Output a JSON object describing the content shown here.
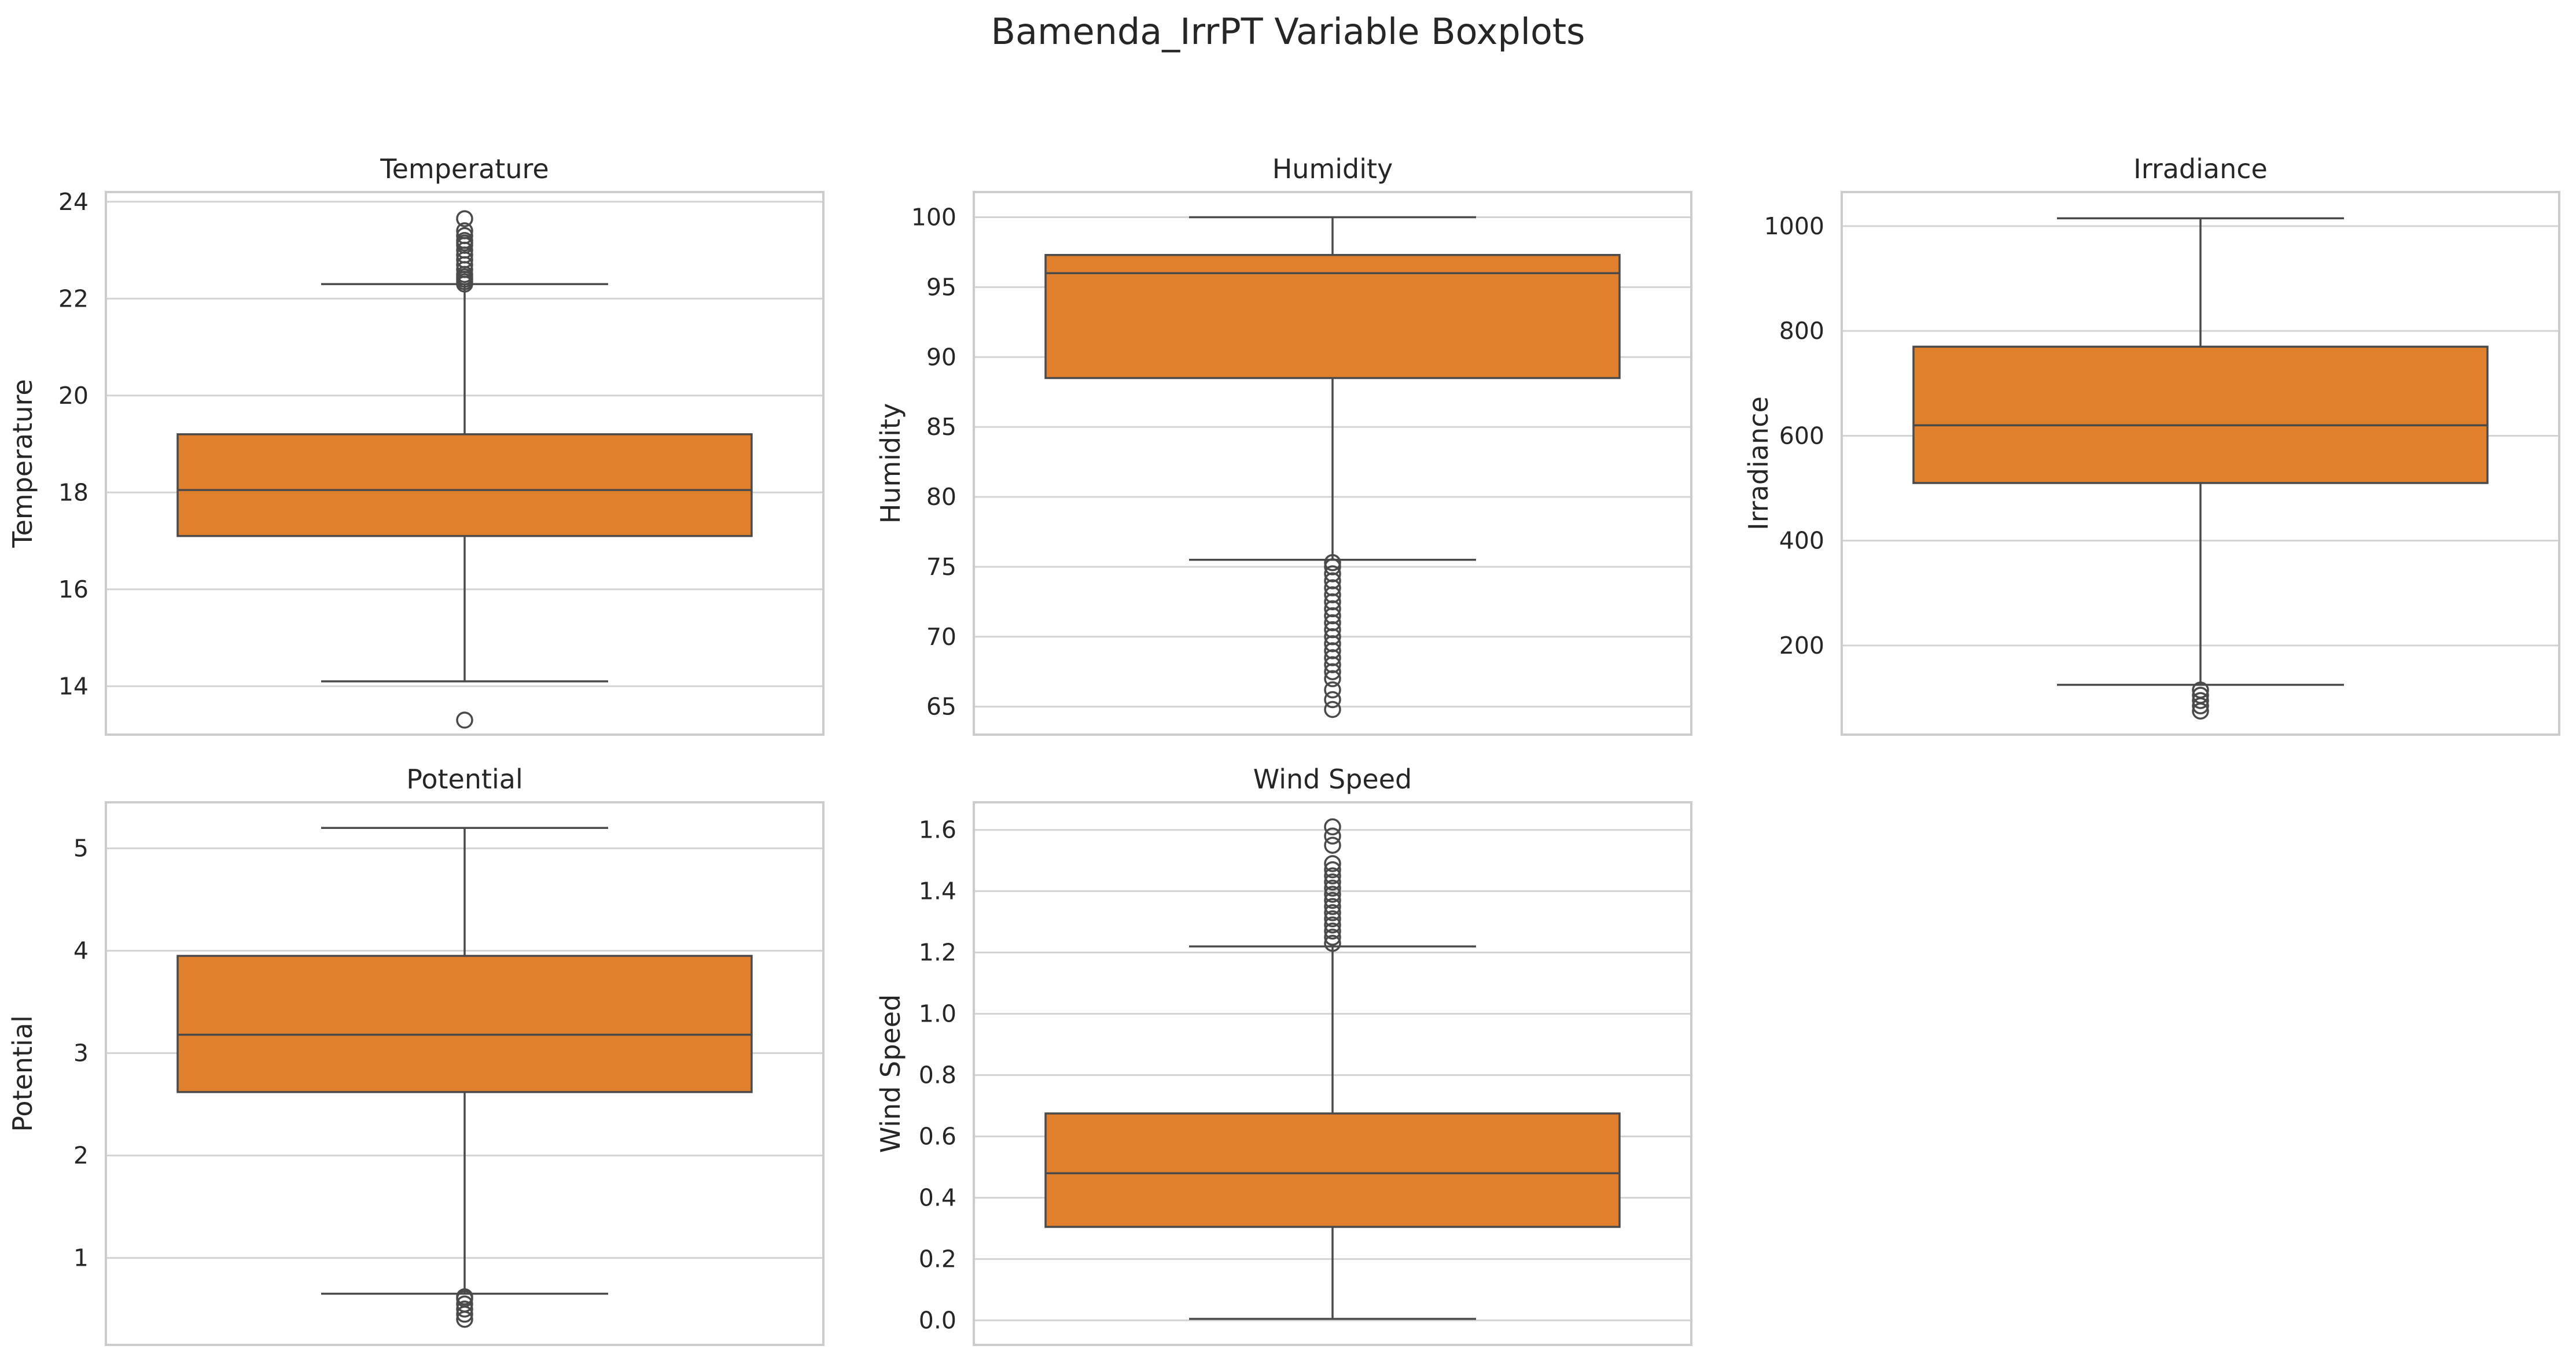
{
  "figure": {
    "title": "Bamenda_IrrPT Variable Boxplots"
  },
  "style": {
    "box_color": "#E07F2C",
    "line_color": "#4a4a4a",
    "grid_color": "#d3d3d3",
    "frame_color": "#cccccc",
    "background": "#ffffff"
  },
  "chart_data": [
    {
      "type": "box",
      "title": "Temperature",
      "ylabel": "Temperature",
      "ylim": [
        13.0,
        24.2
      ],
      "yticks": [
        14,
        16,
        18,
        20,
        22,
        24
      ],
      "ytick_labels": [
        "14",
        "16",
        "18",
        "20",
        "22",
        "24"
      ],
      "whisker_low": 14.1,
      "q1": 17.1,
      "median": 18.05,
      "q3": 19.2,
      "whisker_high": 22.3,
      "outliers": [
        13.3,
        22.3,
        22.35,
        22.4,
        22.45,
        22.5,
        22.6,
        22.7,
        22.8,
        22.9,
        23.0,
        23.1,
        23.15,
        23.2,
        23.3,
        23.4,
        23.65
      ]
    },
    {
      "type": "box",
      "title": "Humidity",
      "ylabel": "Humidity",
      "ylim": [
        63.0,
        101.8
      ],
      "yticks": [
        65,
        70,
        75,
        80,
        85,
        90,
        95,
        100
      ],
      "ytick_labels": [
        "65",
        "70",
        "75",
        "80",
        "85",
        "90",
        "95",
        "100"
      ],
      "whisker_low": 75.5,
      "q1": 88.5,
      "median": 96.0,
      "q3": 97.3,
      "whisker_high": 100.0,
      "outliers": [
        64.8,
        65.5,
        66.2,
        67.0,
        67.5,
        68.0,
        68.5,
        69.0,
        69.5,
        70.0,
        70.5,
        71.0,
        71.5,
        72.0,
        72.5,
        73.0,
        73.5,
        74.0,
        74.5,
        75.0,
        75.3
      ]
    },
    {
      "type": "box",
      "title": "Irradiance",
      "ylabel": "Irradiance",
      "ylim": [
        30,
        1065
      ],
      "yticks": [
        200,
        400,
        600,
        800,
        1000
      ],
      "ytick_labels": [
        "200",
        "400",
        "600",
        "800",
        "1000"
      ],
      "whisker_low": 125,
      "q1": 510,
      "median": 620,
      "q3": 770,
      "whisker_high": 1015,
      "outliers": [
        75,
        85,
        95,
        105,
        115
      ]
    },
    {
      "type": "box",
      "title": "Potential",
      "ylabel": "Potential",
      "ylim": [
        0.15,
        5.45
      ],
      "yticks": [
        1,
        2,
        3,
        4,
        5
      ],
      "ytick_labels": [
        "1",
        "2",
        "3",
        "4",
        "5"
      ],
      "whisker_low": 0.65,
      "q1": 2.62,
      "median": 3.18,
      "q3": 3.95,
      "whisker_high": 5.2,
      "outliers": [
        0.4,
        0.45,
        0.5,
        0.55,
        0.6,
        0.62
      ]
    },
    {
      "type": "box",
      "title": "Wind Speed",
      "ylabel": "Wind Speed",
      "ylim": [
        -0.08,
        1.69
      ],
      "yticks": [
        0.0,
        0.2,
        0.4,
        0.6,
        0.8,
        1.0,
        1.2,
        1.4,
        1.6
      ],
      "ytick_labels": [
        "0.0",
        "0.2",
        "0.4",
        "0.6",
        "0.8",
        "1.0",
        "1.2",
        "1.4",
        "1.6"
      ],
      "whisker_low": 0.005,
      "q1": 0.305,
      "median": 0.48,
      "q3": 0.675,
      "whisker_high": 1.22,
      "outliers": [
        1.23,
        1.25,
        1.27,
        1.29,
        1.31,
        1.33,
        1.35,
        1.37,
        1.39,
        1.41,
        1.43,
        1.45,
        1.47,
        1.49,
        1.55,
        1.58,
        1.61
      ]
    }
  ]
}
